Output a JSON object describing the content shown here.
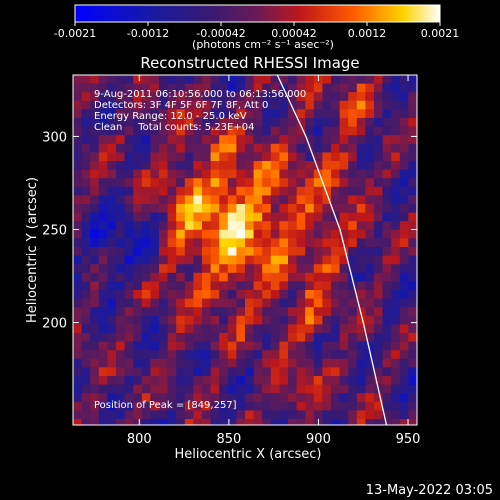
{
  "chart_data": {
    "type": "heatmap",
    "title": "Reconstructed RHESSI Image",
    "xlabel": "Heliocentric X (arcsec)",
    "ylabel": "Heliocentric Y (arcsec)",
    "xlim": [
      763,
      955
    ],
    "ylim": [
      145,
      333
    ],
    "x_ticks": [
      800,
      850,
      900,
      950
    ],
    "y_ticks": [
      200,
      250,
      300
    ],
    "colorbar": {
      "ticks": [
        "-0.0021",
        "-0.0012",
        "-0.00042",
        "0.00042",
        "0.0012",
        "0.0021"
      ],
      "range": [
        -0.0021,
        0.0021
      ],
      "units_label": "(photons cm⁻² s⁻¹ asec⁻²)"
    },
    "annotations": [
      "9-Aug-2011 06:10:56.000 to 06:13:56.000",
      "Detectors: 3F 4F 5F 6F 7F 8F, Att 0",
      "Energy Range: 12.0 - 25.0 keV",
      "Clean     Total counts: 5.23E+04"
    ],
    "peak_label": "Position of Peak = [849,257]",
    "peak": [
      849,
      257
    ],
    "limb_curve": [
      [
        877,
        333
      ],
      [
        893,
        300
      ],
      [
        912,
        250
      ],
      [
        925,
        200
      ],
      [
        938,
        145
      ]
    ]
  },
  "footer": {
    "timestamp": "13-May-2022 03:05"
  }
}
